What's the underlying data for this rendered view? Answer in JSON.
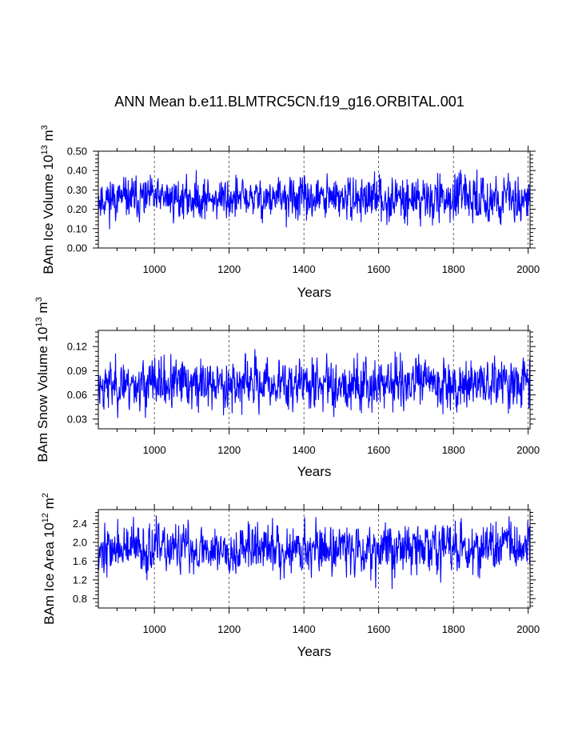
{
  "figure_title": "ANN Mean b.e11.BLMTRC5CN.f19_g16.ORBITAL.001",
  "colors": {
    "line": "#0000ff",
    "axis": "#000000",
    "grid": "#000000"
  },
  "chart_data": [
    {
      "type": "line",
      "id": "ice-volume",
      "ylabel": "BAm Ice Volume 10",
      "ylabel_exp": "13",
      "ylabel_unit": "m",
      "ylabel_unit_exp": "3",
      "xlabel": "Years",
      "xlim": [
        850,
        2005
      ],
      "ylim": [
        0.0,
        0.5
      ],
      "xticks": [
        1000,
        1200,
        1400,
        1600,
        1800,
        2000
      ],
      "xtick_labels": [
        "1000",
        "1200",
        "1400",
        "1600",
        "1800",
        "2000"
      ],
      "yticks": [
        0.0,
        0.1,
        0.2,
        0.3,
        0.4,
        0.5
      ],
      "ytick_labels": [
        "0.00",
        "0.10",
        "0.20",
        "0.30",
        "0.40",
        "0.50"
      ],
      "series": [
        {
          "name": "BAm Ice Volume",
          "x_start": 850,
          "x_end": 2005,
          "mean": 0.255,
          "amplitude": 0.055,
          "amplitude_growth": 0.008,
          "trend": 0.0,
          "seed": 11,
          "min": 0.08,
          "max": 0.42,
          "notes": "annual mean series, values mostly 0.15–0.35"
        }
      ]
    },
    {
      "type": "line",
      "id": "snow-volume",
      "ylabel": "BAm Snow Volume 10",
      "ylabel_exp": "13",
      "ylabel_unit": "m",
      "ylabel_unit_exp": "3",
      "xlabel": "Years",
      "xlim": [
        850,
        2005
      ],
      "ylim": [
        0.018,
        0.14
      ],
      "xticks": [
        1000,
        1200,
        1400,
        1600,
        1800,
        2000
      ],
      "xtick_labels": [
        "1000",
        "1200",
        "1400",
        "1600",
        "1800",
        "2000"
      ],
      "yticks": [
        0.03,
        0.06,
        0.09,
        0.12
      ],
      "ytick_labels": [
        "0.03",
        "0.06",
        "0.09",
        "0.12"
      ],
      "series": [
        {
          "name": "BAm Snow Volume",
          "x_start": 850,
          "x_end": 2005,
          "mean": 0.073,
          "amplitude": 0.016,
          "amplitude_growth": 0.002,
          "trend": 0.002,
          "seed": 23,
          "min": 0.022,
          "max": 0.125,
          "notes": "annual mean series, values mostly 0.04–0.10"
        }
      ]
    },
    {
      "type": "line",
      "id": "ice-area",
      "ylabel": "BAm Ice Area 10",
      "ylabel_exp": "12",
      "ylabel_unit": "m",
      "ylabel_unit_exp": "2",
      "xlabel": "Years",
      "xlim": [
        850,
        2005
      ],
      "ylim": [
        0.6,
        2.7
      ],
      "xticks": [
        1000,
        1200,
        1400,
        1600,
        1800,
        2000
      ],
      "xtick_labels": [
        "1000",
        "1200",
        "1400",
        "1600",
        "1800",
        "2000"
      ],
      "yticks": [
        0.8,
        1.2,
        1.6,
        2.0,
        2.4
      ],
      "ytick_labels": [
        "0.8",
        "1.2",
        "1.6",
        "2.0",
        "2.4"
      ],
      "series": [
        {
          "name": "BAm Ice Area",
          "x_start": 850,
          "x_end": 2005,
          "mean": 1.85,
          "amplitude": 0.27,
          "amplitude_growth": 0.04,
          "trend": 0.05,
          "seed": 37,
          "min": 0.9,
          "max": 2.6,
          "notes": "annual mean series, values mostly 1.3–2.3"
        }
      ]
    }
  ]
}
